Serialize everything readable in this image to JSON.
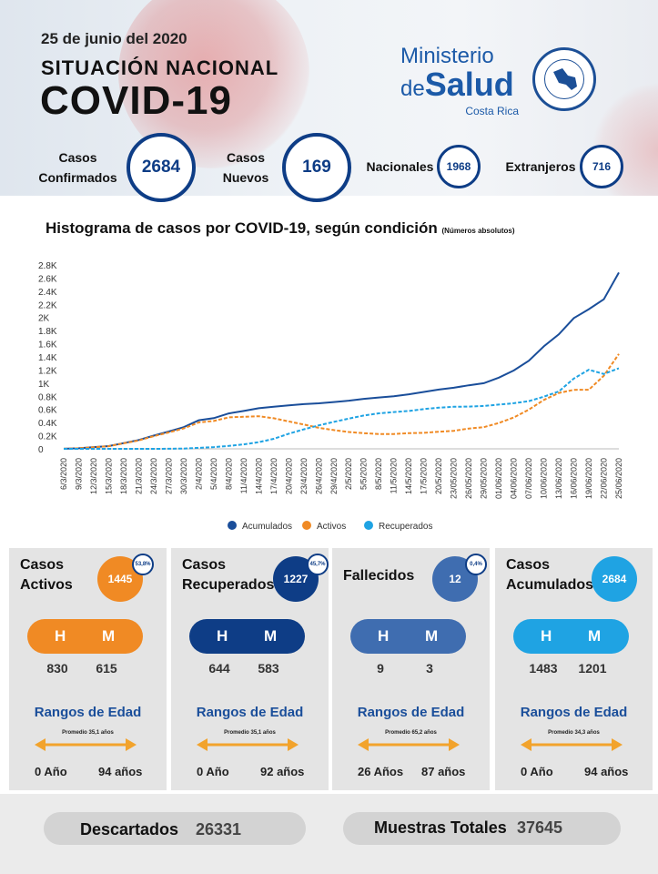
{
  "header": {
    "date": "25 de junio del 2020",
    "subtitle": "SITUACIÓN NACIONAL",
    "title": "COVID-19",
    "logo_line1": "Ministerio",
    "logo_de": "de",
    "logo_salud": "Salud",
    "logo_country": "Costa Rica"
  },
  "summary": {
    "confirmados_label_1": "Casos",
    "confirmados_label_2": "Confirmados",
    "confirmados_value": "2684",
    "nuevos_label_1": "Casos",
    "nuevos_label_2": "Nuevos",
    "nuevos_value": "169",
    "nacionales_label": "Nacionales",
    "nacionales_value": "1968",
    "extranjeros_label": "Extranjeros",
    "extranjeros_value": "716"
  },
  "chart_title": "Histograma de casos por COVID-19, según condición",
  "chart_title_note": "(Números absolutos)",
  "chart_data": {
    "type": "line",
    "x": [
      "6/3/2020",
      "9/3/2020",
      "12/3/2020",
      "15/3/2020",
      "18/3/2020",
      "21/3/2020",
      "24/3/2020",
      "27/3/2020",
      "30/3/2020",
      "2/4/2020",
      "5/4/2020",
      "8/4/2020",
      "11/4/2020",
      "14/4/2020",
      "17/4/2020",
      "20/4/2020",
      "23/4/2020",
      "26/4/2020",
      "29/4/2020",
      "2/5/2020",
      "5/5/2020",
      "8/5/2020",
      "11/5/2020",
      "14/5/2020",
      "17/5/2020",
      "20/5/2020",
      "23/05/2020",
      "26/05/2020",
      "29/05/2020",
      "01/06/2020",
      "04/06/2020",
      "07/06/2020",
      "10/06/2020",
      "13/06/2020",
      "16/06/2020",
      "19/06/2020",
      "22/06/2020",
      "25/06/2020"
    ],
    "yticks": [
      "0",
      "0.2K",
      "0.4K",
      "0.6K",
      "0.8K",
      "1K",
      "1.2K",
      "1.4K",
      "1.6K",
      "1.8K",
      "2K",
      "2.2K",
      "2.4K",
      "2.6K",
      "2.8K"
    ],
    "ylim": [
      0,
      2800
    ],
    "series": [
      {
        "name": "Acumulados",
        "color": "#1a4e9a",
        "style": "solid",
        "values": [
          1,
          9,
          26,
          41,
          87,
          134,
          201,
          263,
          330,
          435,
          467,
          539,
          577,
          618,
          642,
          662,
          681,
          693,
          713,
          733,
          761,
          782,
          801,
          830,
          866,
          903,
          930,
          968,
          1000,
          1084,
          1194,
          1342,
          1561,
          1744,
          1990,
          2127,
          2277,
          2684
        ]
      },
      {
        "name": "Activos",
        "color": "#f08a24",
        "style": "dashed",
        "values": [
          1,
          9,
          25,
          40,
          84,
          128,
          193,
          250,
          310,
          402,
          424,
          479,
          488,
          496,
          466,
          417,
          370,
          320,
          286,
          257,
          239,
          226,
          226,
          238,
          244,
          261,
          274,
          309,
          330,
          393,
          478,
          598,
          745,
          851,
          898,
          899,
          1113,
          1445
        ]
      },
      {
        "name": "Recuperados",
        "color": "#1fa3e3",
        "style": "dashed",
        "values": [
          0,
          0,
          0,
          0,
          0,
          0,
          0,
          2,
          4,
          15,
          27,
          44,
          68,
          101,
          152,
          230,
          296,
          358,
          410,
          460,
          508,
          541,
          560,
          576,
          606,
          626,
          640,
          643,
          653,
          674,
          694,
          726,
          794,
          875,
          1070,
          1204,
          1139,
          1227
        ]
      }
    ],
    "legend_position": "bottom"
  },
  "panels": [
    {
      "title_1": "Casos",
      "title_2": "Activos",
      "value": "1445",
      "pct": "53,8%",
      "h_label": "H",
      "m_label": "M",
      "h": "830",
      "m": "615",
      "rangos": "Rangos de Edad",
      "promedio": "Promedio 35,1 años",
      "age_min": "0 Año",
      "age_max": "94 años"
    },
    {
      "title_1": "Casos",
      "title_2": "Recuperados",
      "value": "1227",
      "pct": "45,7%",
      "h_label": "H",
      "m_label": "M",
      "h": "644",
      "m": "583",
      "rangos": "Rangos de Edad",
      "promedio": "Promedio 35,1 años",
      "age_min": "0 Año",
      "age_max": "92 años"
    },
    {
      "title_1": "Fallecidos",
      "title_2": "",
      "value": "12",
      "pct": "0,4%",
      "h_label": "H",
      "m_label": "M",
      "h": "9",
      "m": "3",
      "rangos": "Rangos de Edad",
      "promedio": "Promedio 65,2 años",
      "age_min": "26 Años",
      "age_max": "87 años"
    },
    {
      "title_1": "Casos",
      "title_2": "Acumulados",
      "value": "2684",
      "pct": "",
      "h_label": "H",
      "m_label": "M",
      "h": "1483",
      "m": "1201",
      "rangos": "Rangos de Edad",
      "promedio": "Promedio 34,3  años",
      "age_min": "0 Año",
      "age_max": "94 años"
    }
  ],
  "colors": {
    "activos": "#f08a24",
    "recuperados": "#0e3d86",
    "fallecidos": "#3f6db0",
    "acumulados": "#1fa3e3",
    "arrow": "#f2a32c"
  },
  "bottom": {
    "descartados_label": "Descartados",
    "descartados_value": "26331",
    "muestras_label": "Muestras Totales",
    "muestras_value": "37645"
  }
}
